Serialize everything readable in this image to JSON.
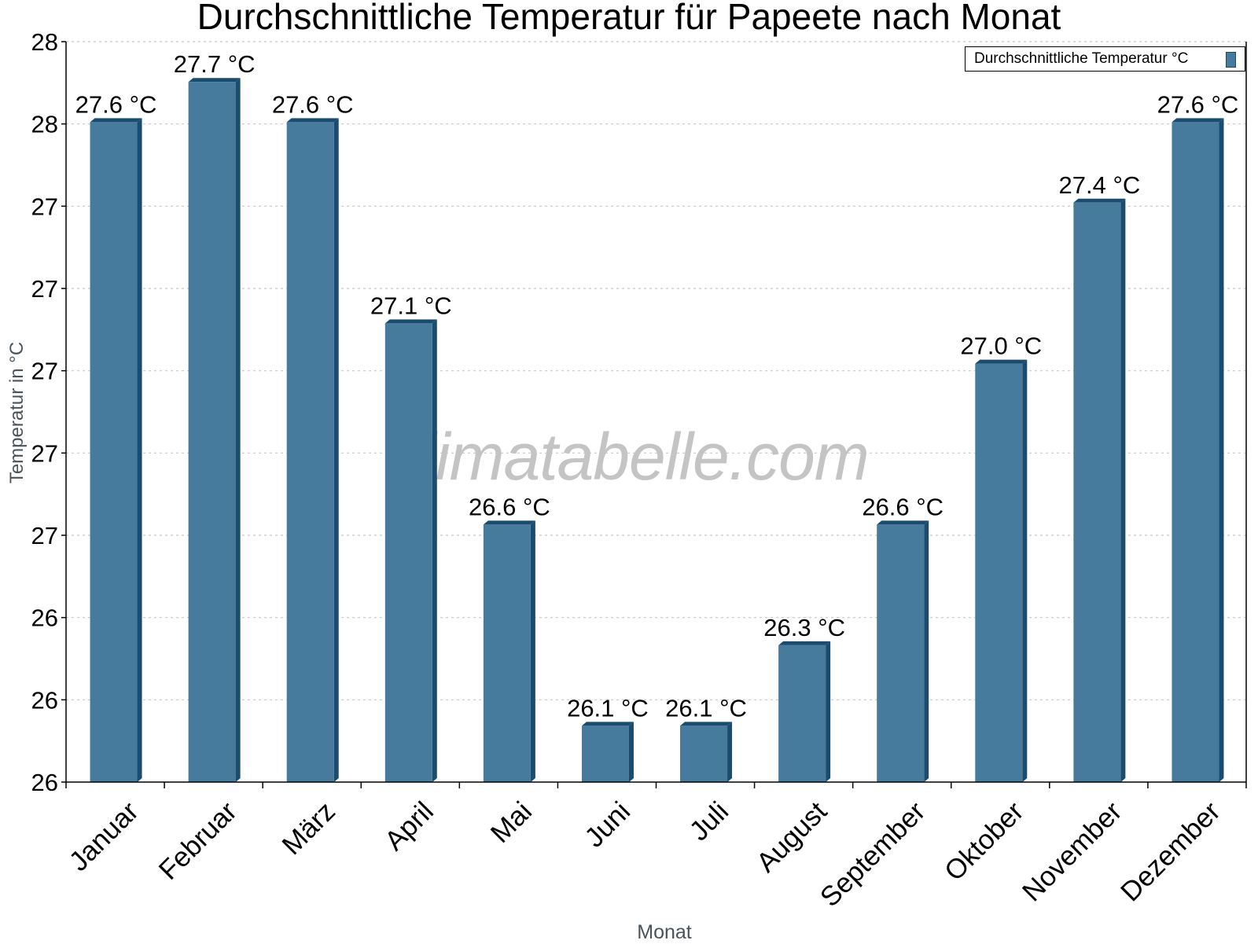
{
  "chart_data": {
    "type": "bar",
    "title": "Durchschnittliche Temperatur für Papeete nach Monat",
    "xlabel": "Monat",
    "ylabel": "Temperatur in °C",
    "categories": [
      "Januar",
      "Februar",
      "März",
      "April",
      "Mai",
      "Juni",
      "Juli",
      "August",
      "September",
      "Oktober",
      "November",
      "Dezember"
    ],
    "series": [
      {
        "name": "Durchschnittliche Temperatur °C",
        "values": [
          27.6,
          27.7,
          27.6,
          27.1,
          26.6,
          26.1,
          26.1,
          26.3,
          26.6,
          27.0,
          27.4,
          27.6
        ],
        "labels": [
          "27.6 °C",
          "27.7 °C",
          "27.6 °C",
          "27.1 °C",
          "26.6 °C",
          "26.1 °C",
          "26.1 °C",
          "26.3 °C",
          "26.6 °C",
          "27.0 °C",
          "27.4 °C",
          "27.6 °C"
        ],
        "color": "#467b9d",
        "edge_color": "#1b4c6d"
      }
    ],
    "ylim": [
      25.96,
      27.8
    ],
    "ytick_labels": [
      "28",
      "28",
      "27",
      "27",
      "27",
      "27",
      "27",
      "26",
      "26",
      "26"
    ],
    "grid": true,
    "legend_position": "top-right"
  },
  "watermark": "klimatabelle.com",
  "legend": {
    "label": "Durchschnittliche Temperatur °C"
  }
}
